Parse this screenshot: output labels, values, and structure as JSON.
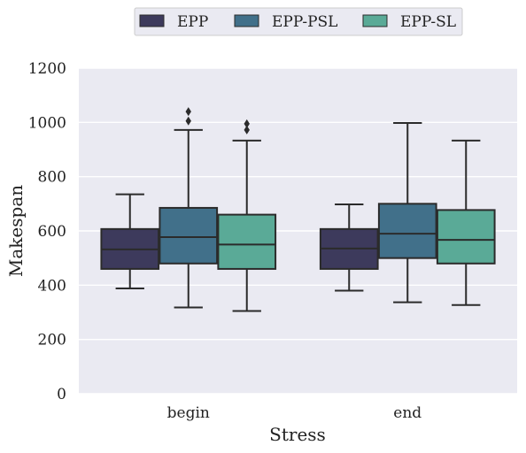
{
  "chart_data": {
    "type": "box",
    "xlabel": "Stress",
    "ylabel": "Makespan",
    "ylim": [
      0,
      1200
    ],
    "yticks": [
      0,
      200,
      400,
      600,
      800,
      1000,
      1200
    ],
    "grid": true,
    "legend_position": "top-center",
    "categories": [
      "begin",
      "end"
    ],
    "series": [
      {
        "name": "EPP",
        "color": "#3d3a5c",
        "boxes": [
          {
            "min": 388,
            "q1": 460,
            "median": 532,
            "q3": 607,
            "max": 735,
            "outliers": []
          },
          {
            "min": 380,
            "q1": 460,
            "median": 535,
            "q3": 607,
            "max": 698,
            "outliers": []
          }
        ]
      },
      {
        "name": "EPP-PSL",
        "color": "#41708a",
        "boxes": [
          {
            "min": 318,
            "q1": 480,
            "median": 577,
            "q3": 685,
            "max": 972,
            "outliers": [
              1005,
              1040
            ]
          },
          {
            "min": 337,
            "q1": 500,
            "median": 590,
            "q3": 700,
            "max": 998,
            "outliers": []
          }
        ]
      },
      {
        "name": "EPP-SL",
        "color": "#5aaa97",
        "boxes": [
          {
            "min": 305,
            "q1": 460,
            "median": 550,
            "q3": 660,
            "max": 933,
            "outliers": [
              972,
              995
            ]
          },
          {
            "min": 327,
            "q1": 480,
            "median": 567,
            "q3": 677,
            "max": 933,
            "outliers": []
          }
        ]
      }
    ]
  }
}
